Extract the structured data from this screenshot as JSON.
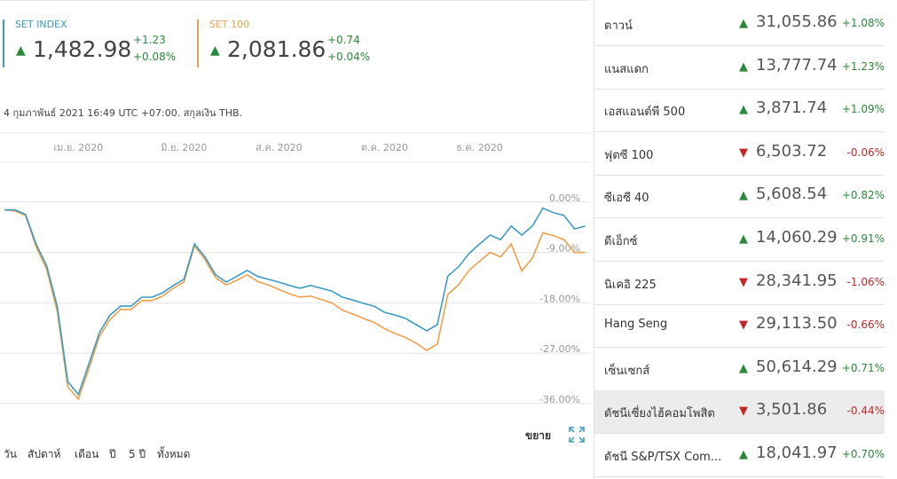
{
  "header": {
    "cards": [
      {
        "name": "SET INDEX",
        "value": "1,482.98",
        "change": "+1.23",
        "change_pct": "+0.08%",
        "direction": "up",
        "color": "#3d9cc4"
      },
      {
        "name": "SET 100",
        "value": "2,081.86",
        "change": "+0.74",
        "change_pct": "+0.04%",
        "direction": "up",
        "color": "#f0a04b"
      }
    ],
    "timestamp": "4 กุมภาพันธ์ 2021 16:49 UTC +07:00. สกุลเงิน THB."
  },
  "chart_data": {
    "type": "line",
    "categories": [
      null,
      null,
      null,
      null,
      null,
      null,
      null,
      "เม.ย. 2020",
      null,
      null,
      null,
      null,
      null,
      null,
      null,
      null,
      null,
      "มิ.ย. 2020",
      null,
      null,
      null,
      null,
      null,
      null,
      null,
      null,
      "ส.ค. 2020",
      null,
      null,
      null,
      null,
      null,
      null,
      null,
      null,
      null,
      "ต.ค. 2020",
      null,
      null,
      null,
      null,
      null,
      null,
      null,
      null,
      "ธ.ค. 2020",
      null,
      null,
      null,
      null,
      null,
      null,
      null,
      null,
      null,
      null
    ],
    "series": [
      {
        "name": "SET INDEX",
        "color": "#3d9cc4",
        "values": [
          -1.4,
          -1.4,
          -2.2,
          -7.5,
          -11.4,
          -18.6,
          -32.1,
          -34.4,
          -28.9,
          -23.3,
          -20.2,
          -18.6,
          -18.6,
          -17.0,
          -17.0,
          -16.2,
          -14.9,
          -13.8,
          -7.5,
          -9.8,
          -13.0,
          -14.3,
          -13.3,
          -12.2,
          -13.3,
          -13.8,
          -14.3,
          -14.9,
          -15.4,
          -14.9,
          -15.4,
          -15.9,
          -17.0,
          -17.5,
          -18.1,
          -18.6,
          -19.7,
          -20.2,
          -20.8,
          -21.9,
          -23.0,
          -21.9,
          -13.2,
          -11.6,
          -9.2,
          -7.5,
          -5.9,
          -6.7,
          -4.3,
          -5.9,
          -4.3,
          -1.1,
          -1.9,
          -2.4,
          -4.8,
          -4.3
        ]
      },
      {
        "name": "SET 100",
        "color": "#f0a04b",
        "values": [
          -1.4,
          -1.6,
          -2.4,
          -8.0,
          -12.0,
          -19.5,
          -33.0,
          -35.2,
          -29.8,
          -24.0,
          -21.0,
          -19.2,
          -19.2,
          -17.6,
          -17.6,
          -16.8,
          -15.4,
          -14.3,
          -7.8,
          -10.3,
          -13.5,
          -14.8,
          -14.0,
          -13.0,
          -14.2,
          -14.8,
          -15.6,
          -16.4,
          -17.0,
          -16.8,
          -17.4,
          -18.0,
          -19.3,
          -20.0,
          -20.8,
          -21.5,
          -22.6,
          -23.5,
          -24.2,
          -25.2,
          -26.5,
          -25.4,
          -16.5,
          -14.8,
          -12.2,
          -10.6,
          -9.0,
          -9.8,
          -7.5,
          -12.3,
          -10.0,
          -5.5,
          -6.0,
          -6.7,
          -9.0,
          -9.0
        ]
      }
    ],
    "ylim": [
      -37.6,
      7.1
    ],
    "yticks": [
      {
        "value": 0,
        "label": "0.00%"
      },
      {
        "value": -9,
        "label": "-9.00%"
      },
      {
        "value": -18,
        "label": "-18.00%"
      },
      {
        "value": -27,
        "label": "-27.00%"
      },
      {
        "value": -36,
        "label": "-36.00%"
      }
    ],
    "grid": true
  },
  "controls": {
    "ranges": [
      "วัน",
      "สัปดาห์",
      "เดือน",
      "ปี",
      "5 ปี",
      "ทั้งหมด"
    ],
    "expand": "ขยาย"
  },
  "indices": [
    {
      "name": "ดาวน์",
      "value": "31,055.86",
      "change_pct": "+1.08%",
      "direction": "up"
    },
    {
      "name": "แนสแดก",
      "value": "13,777.74",
      "change_pct": "+1.23%",
      "direction": "up"
    },
    {
      "name": "เอสแอนด์พี 500",
      "value": "3,871.74",
      "change_pct": "+1.09%",
      "direction": "up"
    },
    {
      "name": "ฟุตซี 100",
      "value": "6,503.72",
      "change_pct": "-0.06%",
      "direction": "down"
    },
    {
      "name": "ซีเอซี 40",
      "value": "5,608.54",
      "change_pct": "+0.82%",
      "direction": "up"
    },
    {
      "name": "ดีเอ็กซ์",
      "value": "14,060.29",
      "change_pct": "+0.91%",
      "direction": "up"
    },
    {
      "name": "นิเคอิ 225",
      "value": "28,341.95",
      "change_pct": "-1.06%",
      "direction": "down"
    },
    {
      "name": "Hang Seng",
      "value": "29,113.50",
      "change_pct": "-0.66%",
      "direction": "down"
    },
    {
      "name": "เซ็นเซกส์",
      "value": "50,614.29",
      "change_pct": "+0.71%",
      "direction": "up"
    },
    {
      "name": "ดัชนีเซี่ยงไฮ้คอมโพสิต",
      "value": "3,501.86",
      "change_pct": "-0.44%",
      "direction": "down",
      "highlighted": true
    },
    {
      "name": "ดัชนี S&P/TSX Com...",
      "value": "18,041.97",
      "change_pct": "+0.70%",
      "direction": "up"
    }
  ]
}
